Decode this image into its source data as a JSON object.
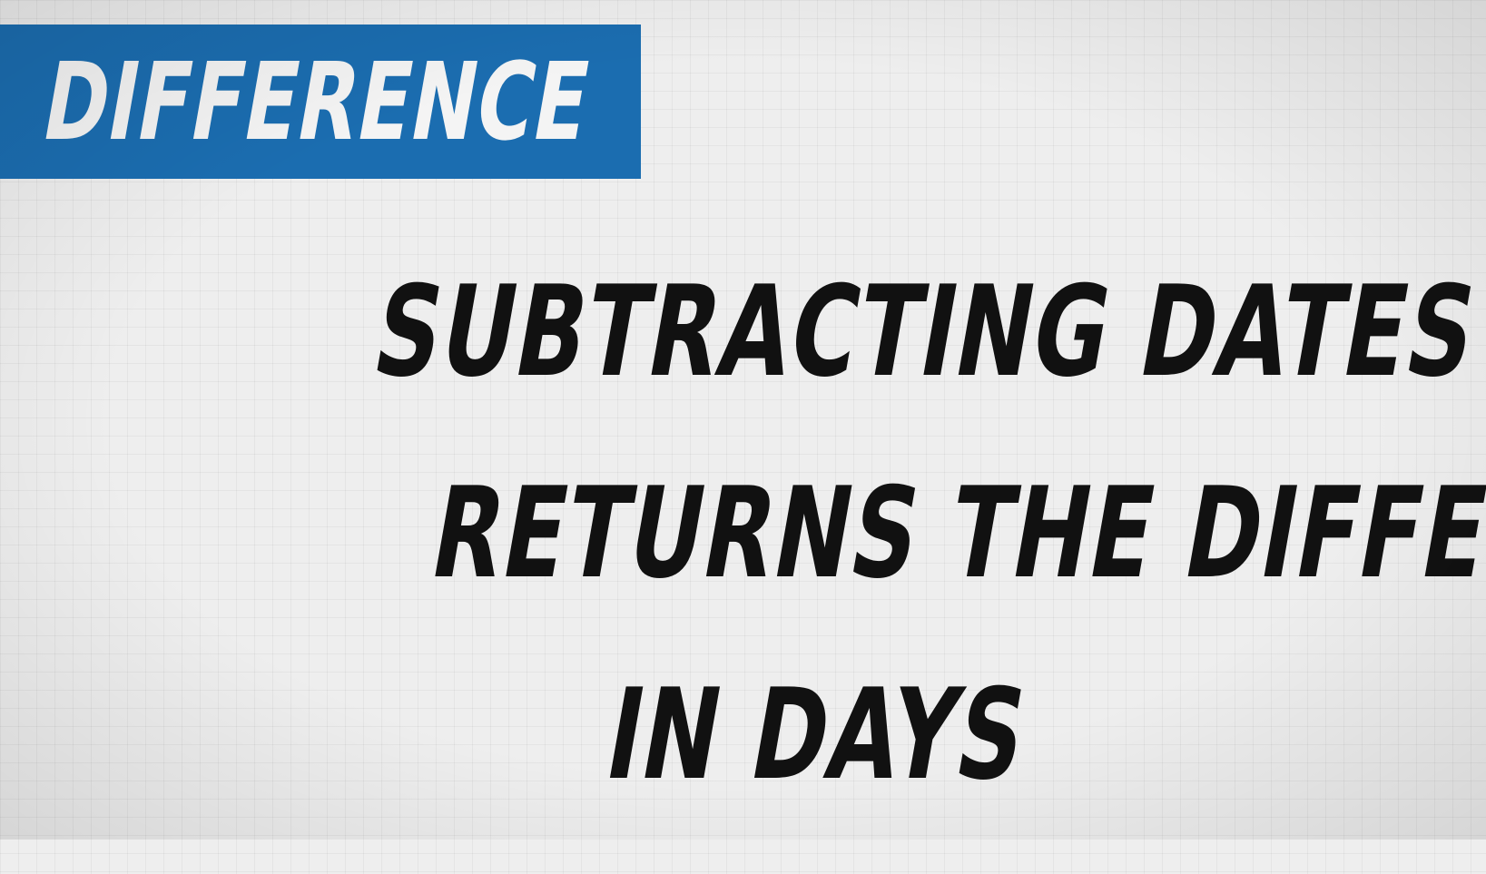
{
  "banner": {
    "label": "DIFFERENCE",
    "background_color": "#1b6db0",
    "text_color": "#f4f4f4"
  },
  "statement": {
    "lines": [
      "SUBTRACTING DATES",
      "RETURNS THE DIFFERENCE",
      "IN DAYS"
    ],
    "text_color": "#111111"
  },
  "background": {
    "color": "#eeeeee",
    "pattern": "grid"
  }
}
